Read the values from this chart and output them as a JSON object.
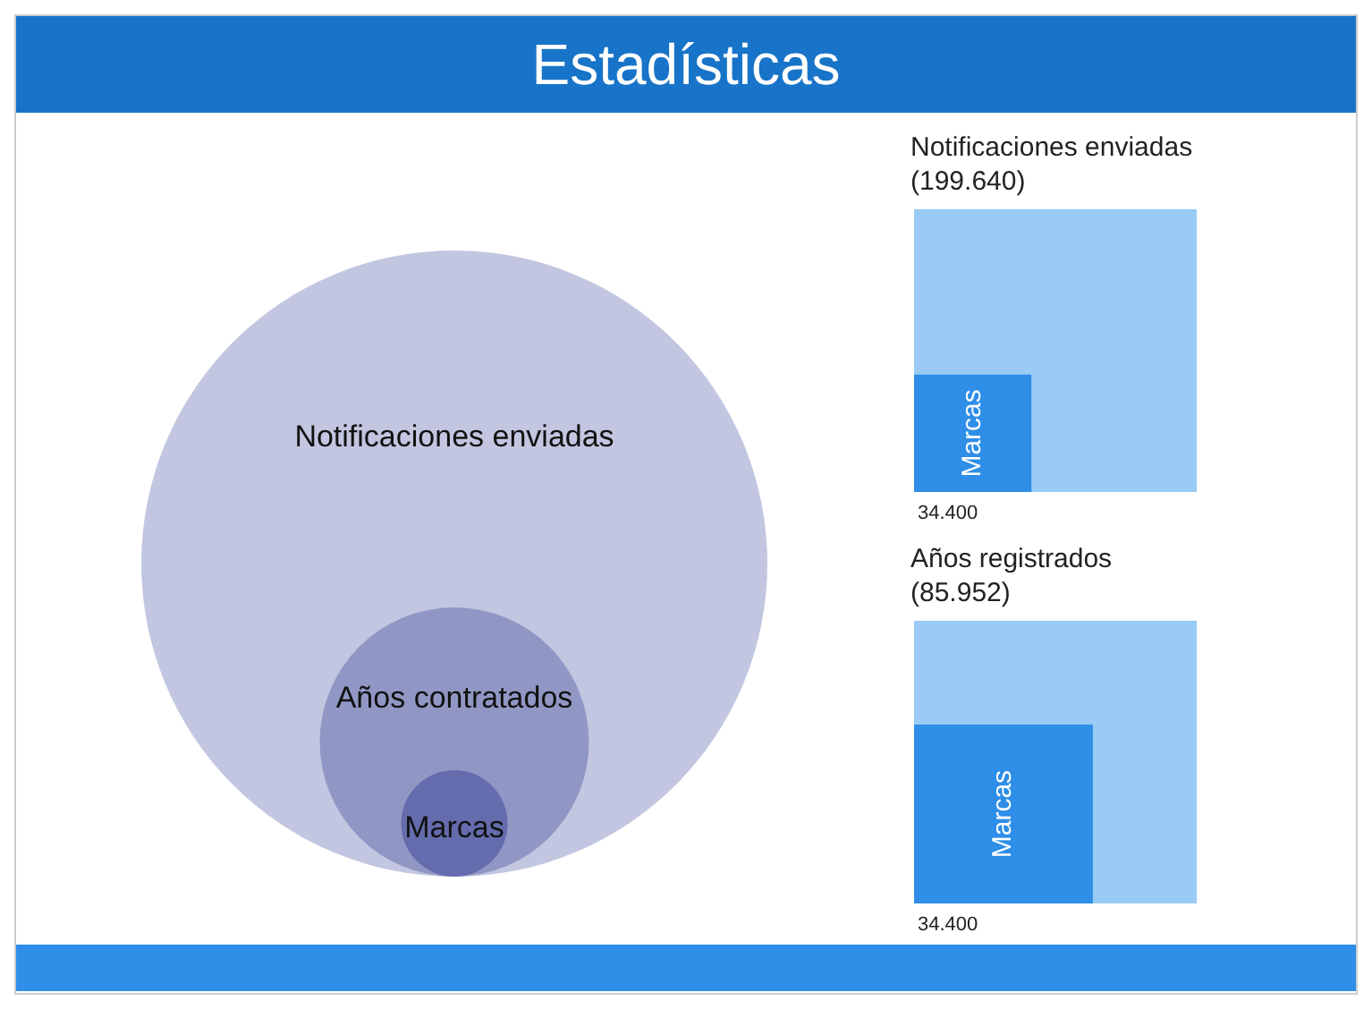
{
  "chart_data": [
    {
      "type": "other",
      "title": "Estadísticas",
      "categories": [
        "Notificaciones enviadas",
        "Años contratados",
        "Marcas"
      ],
      "colors": [
        "#c2c6e0",
        "#9097c4",
        "#646cae"
      ]
    },
    {
      "type": "other",
      "categories": [
        "Notificaciones enviadas",
        "Marcas"
      ],
      "values": [
        199640,
        34400
      ],
      "value_labels": [
        "(199.640)",
        "34.400"
      ],
      "colors": [
        "#99cbf5",
        "#2e8ee8"
      ]
    },
    {
      "type": "other",
      "categories": [
        "Años registrados",
        "Marcas"
      ],
      "values": [
        85952,
        34400
      ],
      "value_labels": [
        "(85.952)",
        "34.400"
      ],
      "colors": [
        "#99cbf5",
        "#2e8ee8"
      ]
    }
  ]
}
